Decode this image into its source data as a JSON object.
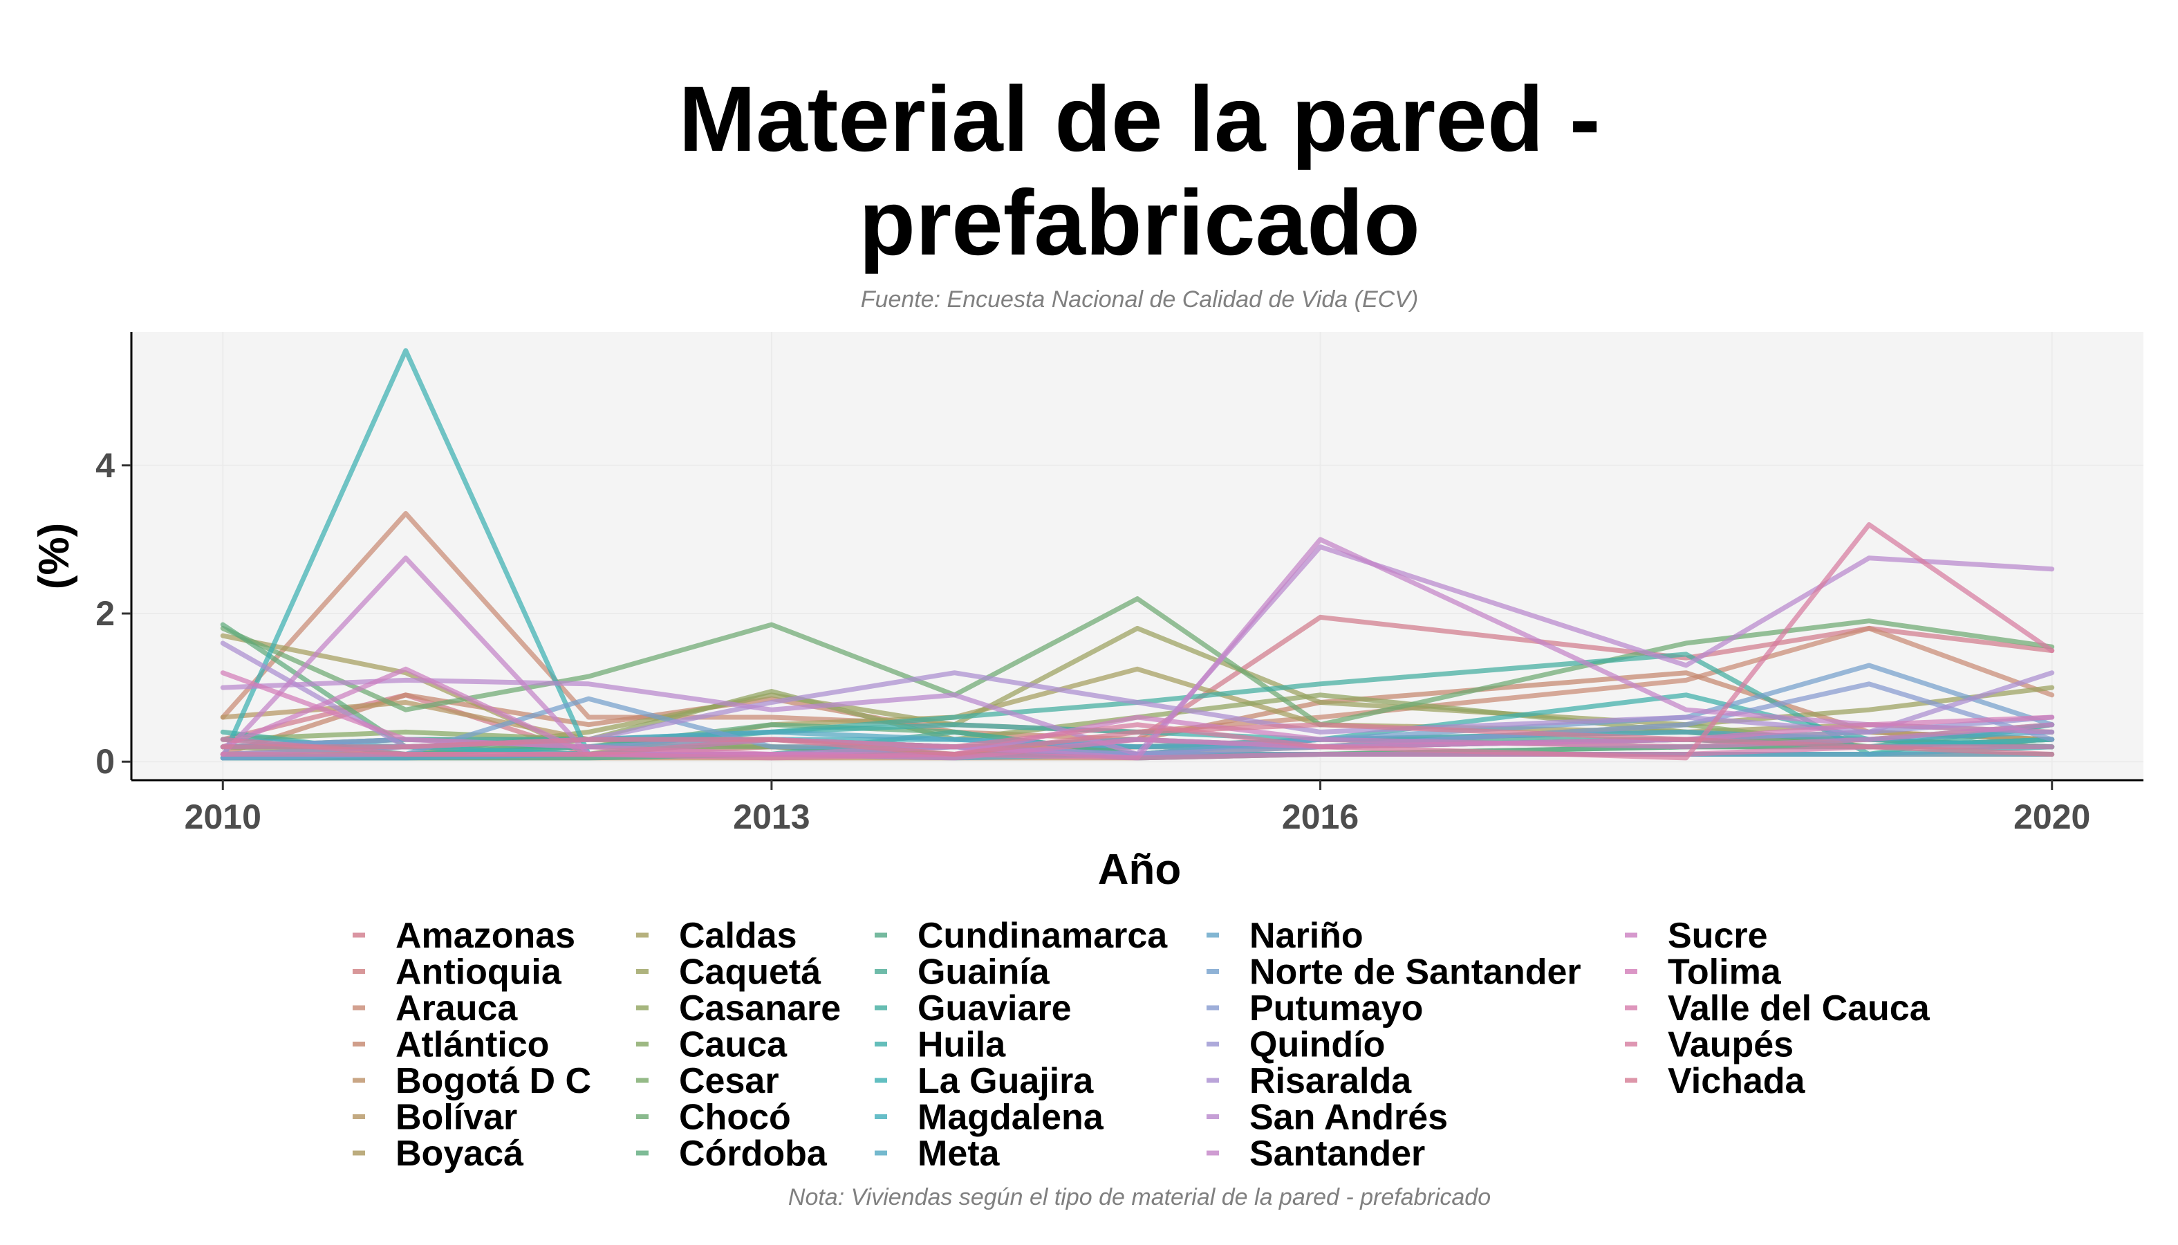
{
  "chart_data": {
    "type": "line",
    "title": "Material de la pared - prefabricado",
    "title_lines": [
      "Material de la pared -",
      "prefabricado"
    ],
    "subtitle": "Fuente: Encuesta Nacional de Calidad de Vida (ECV)",
    "caption": "Nota: Viviendas según el tipo de material de la pared - prefabricado",
    "xlabel": "Año",
    "ylabel": "(%)",
    "x": [
      2010,
      2011,
      2012,
      2013,
      2014,
      2015,
      2016,
      2018,
      2019,
      2020
    ],
    "xlim": [
      2009.5,
      2020.5
    ],
    "ylim": [
      -0.25,
      5.8
    ],
    "xticks": [
      "2010",
      "2013",
      "2016",
      "2020"
    ],
    "yticks": [
      "0",
      "2",
      "4"
    ],
    "grid": true,
    "legend_position": "bottom",
    "series": [
      {
        "name": "Amazonas",
        "color": "#d17b8c",
        "values": [
          0.3,
          0.9,
          0.1,
          0.1,
          0.1,
          0.3,
          1.95,
          1.4,
          1.8,
          1.5
        ]
      },
      {
        "name": "Antioquia",
        "color": "#cf7e80",
        "values": [
          0.1,
          0.2,
          0.1,
          0.2,
          0.1,
          0.2,
          0.2,
          0.3,
          0.3,
          0.2
        ]
      },
      {
        "name": "Arauca",
        "color": "#c98a75",
        "values": [
          0.6,
          3.35,
          0.6,
          0.6,
          0.5,
          0.4,
          0.6,
          1.1,
          1.8,
          0.9
        ]
      },
      {
        "name": "Atlántico",
        "color": "#c5876d",
        "values": [
          0.1,
          0.9,
          0.5,
          0.85,
          0.4,
          0.3,
          0.8,
          1.2,
          0.4,
          0.3
        ]
      },
      {
        "name": "Bogotá D C",
        "color": "#bc9167",
        "values": [
          0.05,
          0.05,
          0.05,
          0.05,
          0.05,
          0.05,
          0.1,
          0.1,
          0.1,
          0.1
        ]
      },
      {
        "name": "Bolívar",
        "color": "#b59563",
        "values": [
          0.6,
          0.8,
          0.3,
          0.3,
          0.2,
          0.2,
          0.3,
          0.2,
          0.3,
          0.2
        ]
      },
      {
        "name": "Boyacá",
        "color": "#ac985f",
        "values": [
          0.2,
          0.3,
          0.3,
          0.2,
          0.2,
          0.3,
          0.2,
          0.3,
          0.4,
          0.3
        ]
      },
      {
        "name": "Caldas",
        "color": "#a59e5e",
        "values": [
          1.7,
          1.2,
          0.1,
          0.5,
          0.6,
          1.25,
          0.5,
          0.4,
          0.5,
          0.4
        ]
      },
      {
        "name": "Caquetá",
        "color": "#9ba15e",
        "values": [
          0.2,
          0.1,
          0.4,
          0.9,
          0.5,
          1.8,
          0.8,
          0.5,
          0.7,
          1.0
        ]
      },
      {
        "name": "Casanare",
        "color": "#90a45f",
        "values": [
          0.1,
          0.05,
          0.3,
          0.95,
          0.3,
          0.6,
          0.9,
          0.4,
          0.3,
          0.5
        ]
      },
      {
        "name": "Cauca",
        "color": "#85a763",
        "values": [
          0.3,
          0.4,
          0.3,
          0.3,
          0.2,
          0.1,
          0.2,
          0.5,
          0.2,
          0.3
        ]
      },
      {
        "name": "Cesar",
        "color": "#7aa96a",
        "values": [
          0.1,
          0.1,
          0.2,
          0.2,
          0.1,
          0.1,
          0.1,
          0.2,
          0.2,
          0.3
        ]
      },
      {
        "name": "Chocó",
        "color": "#6ea972",
        "values": [
          1.8,
          0.7,
          1.15,
          1.85,
          0.9,
          2.2,
          0.5,
          1.6,
          1.9,
          1.55
        ]
      },
      {
        "name": "Córdoba",
        "color": "#5fab7c",
        "values": [
          1.85,
          0.2,
          0.2,
          0.5,
          0.4,
          0.1,
          0.3,
          0.4,
          0.2,
          0.3
        ]
      },
      {
        "name": "Cundinamarca",
        "color": "#55aa88",
        "values": [
          0.05,
          0.05,
          0.1,
          0.1,
          0.1,
          0.1,
          0.1,
          0.2,
          0.2,
          0.2
        ]
      },
      {
        "name": "Guainía",
        "color": "#4bab94",
        "values": [
          0.05,
          0.05,
          0.05,
          0.1,
          0.4,
          0.1,
          0.3,
          0.3,
          0.2,
          0.5
        ]
      },
      {
        "name": "Guaviare",
        "color": "#42ad9f",
        "values": [
          0.4,
          0.1,
          0.2,
          0.4,
          0.6,
          0.8,
          1.05,
          1.45,
          0.1,
          0.5
        ]
      },
      {
        "name": "Huila",
        "color": "#3eaea9",
        "values": [
          0.2,
          0.3,
          0.3,
          0.4,
          0.5,
          0.4,
          0.3,
          0.9,
          0.3,
          0.2
        ]
      },
      {
        "name": "La Guajira",
        "color": "#3bb0b2",
        "values": [
          0.05,
          5.55,
          0.1,
          0.1,
          0.2,
          0.05,
          0.1,
          0.1,
          0.1,
          0.2
        ]
      },
      {
        "name": "Magdalena",
        "color": "#42aebb",
        "values": [
          0.2,
          0.2,
          0.1,
          0.3,
          0.3,
          0.2,
          0.2,
          0.3,
          0.2,
          0.3
        ]
      },
      {
        "name": "Meta",
        "color": "#52a8c2",
        "values": [
          0.3,
          0.2,
          0.3,
          0.4,
          0.3,
          0.2,
          0.3,
          0.4,
          0.3,
          0.4
        ]
      },
      {
        "name": "Nariño",
        "color": "#63a4c8",
        "values": [
          0.05,
          0.05,
          0.1,
          0.1,
          0.05,
          0.1,
          0.1,
          0.1,
          0.1,
          0.1
        ]
      },
      {
        "name": "Norte de Santander",
        "color": "#749fcc",
        "values": [
          0.05,
          0.1,
          0.85,
          0.2,
          0.2,
          0.1,
          0.3,
          0.6,
          1.3,
          0.5
        ]
      },
      {
        "name": "Putumayo",
        "color": "#869ad0",
        "values": [
          0.2,
          0.3,
          0.2,
          0.3,
          0.2,
          0.3,
          0.2,
          0.5,
          1.05,
          0.3
        ]
      },
      {
        "name": "Quindío",
        "color": "#9994d1",
        "values": [
          0.1,
          0.2,
          0.3,
          0.3,
          0.2,
          0.1,
          0.2,
          0.3,
          0.4,
          0.6
        ]
      },
      {
        "name": "Risaralda",
        "color": "#aa8ed0",
        "values": [
          1.6,
          0.2,
          0.3,
          0.8,
          1.2,
          0.8,
          0.4,
          0.6,
          0.4,
          1.2
        ]
      },
      {
        "name": "San Andrés",
        "color": "#b888cd",
        "values": [
          1.0,
          1.1,
          1.05,
          0.7,
          0.9,
          0.1,
          2.9,
          1.3,
          2.75,
          2.6
        ]
      },
      {
        "name": "Santander",
        "color": "#c484c8",
        "values": [
          0.1,
          2.75,
          0.1,
          0.1,
          0.2,
          0.05,
          3.0,
          0.7,
          0.5,
          0.4
        ]
      },
      {
        "name": "Sucre",
        "color": "#cc80c1",
        "values": [
          0.2,
          1.25,
          0.1,
          0.1,
          0.1,
          0.6,
          0.3,
          0.2,
          0.3,
          0.5
        ]
      },
      {
        "name": "Tolima",
        "color": "#d37db8",
        "values": [
          1.2,
          0.3,
          0.2,
          0.1,
          0.05,
          0.3,
          0.2,
          0.3,
          0.5,
          0.6
        ]
      },
      {
        "name": "Valle del Cauca",
        "color": "#d67cac",
        "values": [
          0.1,
          0.1,
          0.1,
          0.05,
          0.1,
          0.05,
          0.1,
          0.1,
          0.2,
          0.2
        ]
      },
      {
        "name": "Vaupés",
        "color": "#d77ca0",
        "values": [
          0.3,
          0.1,
          0.1,
          0.3,
          0.2,
          0.5,
          0.2,
          0.05,
          3.2,
          1.5
        ]
      },
      {
        "name": "Vichada",
        "color": "#d57c94",
        "values": [
          0.2,
          0.2,
          0.3,
          0.3,
          0.1,
          0.4,
          0.5,
          0.3,
          0.2,
          0.1
        ]
      }
    ]
  }
}
